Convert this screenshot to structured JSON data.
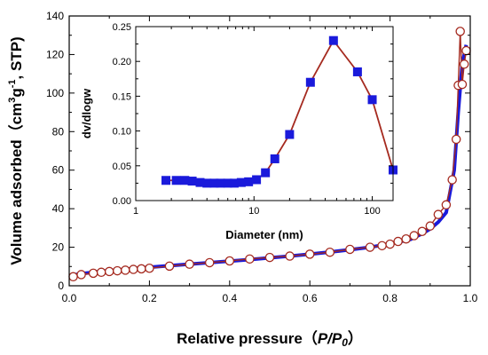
{
  "chart_data": [
    {
      "type": "line",
      "xlabel": "Relative pressure（",
      "xlabel_var": "P/P",
      "xlabel_sub": "0",
      "xlabel_close": "）",
      "ylabel_main": "Volume adsorbed（cm",
      "ylabel_sup1": "3",
      "ylabel_g": "g",
      "ylabel_sup2": "-1",
      "ylabel_end": ", STP)",
      "xlim": [
        0.0,
        1.0
      ],
      "ylim": [
        0,
        140
      ],
      "x_ticks": [
        "0.0",
        "0.2",
        "0.4",
        "0.6",
        "0.8",
        "1.0"
      ],
      "y_ticks": [
        "0",
        "20",
        "40",
        "60",
        "80",
        "100",
        "120",
        "140"
      ],
      "grid": false,
      "series": [
        {
          "role": "adsorption",
          "color": "#1a1adb",
          "x": [
            0.005,
            0.04,
            0.08,
            0.12,
            0.16,
            0.2,
            0.25,
            0.3,
            0.35,
            0.4,
            0.45,
            0.5,
            0.55,
            0.6,
            0.65,
            0.7,
            0.75,
            0.8,
            0.85,
            0.88,
            0.9,
            0.92,
            0.94,
            0.96,
            0.97,
            0.98,
            0.99
          ],
          "y": [
            5.5,
            6.5,
            7.5,
            8.2,
            8.9,
            9.6,
            10.4,
            11.2,
            12.0,
            12.8,
            13.6,
            14.5,
            15.4,
            16.4,
            17.5,
            18.7,
            20.0,
            21.8,
            24.0,
            27.0,
            29.5,
            33.0,
            38.0,
            60.0,
            90.0,
            115.0,
            125.0
          ]
        },
        {
          "role": "desorption",
          "color": "#a52a1f",
          "x": [
            0.01,
            0.03,
            0.06,
            0.08,
            0.1,
            0.12,
            0.14,
            0.16,
            0.18,
            0.2,
            0.25,
            0.3,
            0.35,
            0.4,
            0.45,
            0.5,
            0.55,
            0.6,
            0.65,
            0.7,
            0.75,
            0.78,
            0.8,
            0.82,
            0.84,
            0.86,
            0.88,
            0.9,
            0.92,
            0.94,
            0.955,
            0.965,
            0.97,
            0.975,
            0.98,
            0.985,
            0.99
          ],
          "y": [
            4.7,
            5.8,
            6.5,
            7.0,
            7.4,
            7.8,
            8.1,
            8.5,
            8.8,
            9.1,
            10.2,
            11.2,
            12.0,
            12.9,
            13.9,
            14.7,
            15.4,
            16.4,
            17.4,
            18.9,
            20.0,
            20.8,
            21.6,
            23.0,
            24.3,
            26.0,
            28.2,
            31.0,
            37.0,
            42.0,
            55.0,
            76.0,
            104.0,
            132.0,
            104.5,
            115.0,
            122.0
          ]
        }
      ]
    },
    {
      "type": "line",
      "ylabel": "dv/dlogw",
      "xlabel": "Diameter (nm)",
      "x_scale": "log",
      "xlim": [
        1,
        150
      ],
      "ylim": [
        0.0,
        0.25
      ],
      "x_ticks": [
        "1",
        "10",
        "100"
      ],
      "y_ticks": [
        "0.00",
        "0.05",
        "0.10",
        "0.15",
        "0.20",
        "0.25"
      ],
      "grid": false,
      "series": [
        {
          "marker": "square",
          "color": "#1a1adb",
          "line_color": "#a52a1f",
          "x": [
            1.8,
            2.2,
            2.6,
            3.0,
            3.5,
            4.0,
            4.6,
            5.2,
            6.0,
            6.8,
            7.8,
            9.0,
            10.5,
            12.5,
            15.0,
            20.0,
            30.0,
            47.0,
            75.0,
            100.0,
            150.0
          ],
          "y": [
            0.029,
            0.029,
            0.029,
            0.028,
            0.026,
            0.025,
            0.025,
            0.025,
            0.025,
            0.025,
            0.026,
            0.027,
            0.03,
            0.04,
            0.06,
            0.095,
            0.17,
            0.23,
            0.185,
            0.145,
            0.044
          ]
        }
      ]
    }
  ]
}
